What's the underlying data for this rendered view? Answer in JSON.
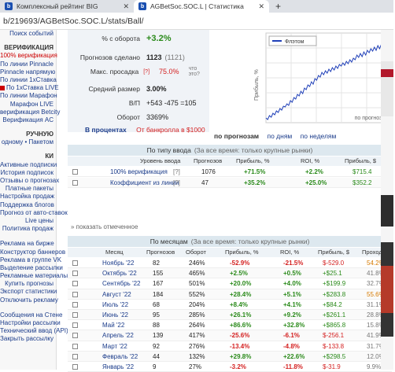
{
  "browser": {
    "tabs": [
      {
        "label": "Комплексный рейтинг BIG",
        "icon": "b"
      },
      {
        "label": "AGBetSoc.SOC.L | Статистика",
        "icon": "b"
      }
    ],
    "address": "b/219693/AGBetSoc.SOC.L/stats/Ball/"
  },
  "sidebar": {
    "items": [
      {
        "label": "Поиск событий",
        "style": "normal"
      },
      {
        "label": "ВЕРИФИКАЦИЯ",
        "style": "head"
      },
      {
        "label": "100% верификация",
        "style": "red"
      },
      {
        "label": "По линии Pinnacle",
        "style": "normal"
      },
      {
        "label": "Pinnacle напрямую",
        "style": "normal"
      },
      {
        "label": "По линии 1хСтавка",
        "style": "normal"
      },
      {
        "label": "По 1хСтавка LIVE",
        "style": "icon"
      },
      {
        "label": "По линии Марафон",
        "style": "normal"
      },
      {
        "label": "Марафон LIVE",
        "style": "normal"
      },
      {
        "label": "верификация Betcity",
        "style": "normal"
      },
      {
        "label": "Верификация AC",
        "style": "normal"
      },
      {
        "label": "РУЧНУЮ",
        "style": "head"
      },
      {
        "label": "одному • Пакетом",
        "style": "normal"
      },
      {
        "label": "КИ",
        "style": "head"
      },
      {
        "label": "Активные подписки",
        "style": "normal"
      },
      {
        "label": "История подписок",
        "style": "normal"
      },
      {
        "label": "Отзывы о прогнозах",
        "style": "normal"
      },
      {
        "label": "Платные пакеты",
        "style": "normal"
      },
      {
        "label": "Настройка продаж",
        "style": "normal"
      },
      {
        "label": "Поддержка блогов",
        "style": "normal"
      },
      {
        "label": "Прогноз от авто-ставок",
        "style": "normal"
      },
      {
        "label": "Live цены",
        "style": "normal"
      },
      {
        "label": "Политика продаж",
        "style": "normal"
      },
      {
        "label": "Реклама на бирже",
        "style": "gap"
      },
      {
        "label": "Конструктор баннеров",
        "style": "normal"
      },
      {
        "label": "Реклама в группе VK",
        "style": "normal"
      },
      {
        "label": "Выделение рассылки",
        "style": "normal"
      },
      {
        "label": "Рекламные материалы",
        "style": "normal"
      },
      {
        "label": "Купить прогнозы",
        "style": "normal"
      },
      {
        "label": "Экспорт статистики",
        "style": "normal"
      },
      {
        "label": "Отключить рекламу",
        "style": "normal"
      },
      {
        "label": "Сообщения на Стене",
        "style": "gap"
      },
      {
        "label": "Настройки рассылки",
        "style": "normal"
      },
      {
        "label": "Технический ввод (API)",
        "style": "normal"
      },
      {
        "label": "Закрыть рассылку",
        "style": "normal"
      }
    ]
  },
  "summary": {
    "rows": [
      {
        "label": "% с оборота",
        "value": "+3.2%",
        "extra": "",
        "color": "green"
      },
      {
        "label": "Прогнозов сделано",
        "value": "1123",
        "extra": "(1121)",
        "color": "dark"
      },
      {
        "label": "Макс. просадка",
        "hint": "[?]",
        "value": "75.0%",
        "extra": "что это?",
        "color": "red"
      },
      {
        "label": "Средний размер",
        "value": "3.00%",
        "extra": "",
        "color": "dark"
      },
      {
        "label": "В/П",
        "value": "+543 -475 =105",
        "extra": "",
        "color": "dark"
      },
      {
        "label": "Оборот",
        "value": "3369%",
        "extra": "",
        "color": "dark"
      }
    ],
    "percent_label": "В процентах",
    "percent_note": "От банкролла в $1000"
  },
  "chart": {
    "legend": "Флэтом",
    "ylabel": "Прибыль, %",
    "xcaption": "по прогнозам",
    "links": [
      "по прогнозам",
      "по дням",
      "по неделям"
    ],
    "chart_data": {
      "type": "line",
      "series": [
        {
          "name": "Флэтом",
          "values": [
            0,
            -2,
            3,
            1,
            6,
            4,
            9,
            7,
            12,
            10,
            15,
            14,
            18,
            16,
            22,
            20,
            26,
            24,
            30,
            28,
            34,
            31,
            38,
            36,
            42,
            40,
            46,
            43,
            50,
            48,
            54,
            52,
            58,
            55,
            60,
            57,
            62,
            59,
            64,
            61,
            66,
            63,
            68,
            66,
            70,
            67,
            72,
            69,
            74,
            71,
            76,
            74,
            80,
            77,
            82,
            78,
            84,
            80,
            86,
            83,
            88,
            85,
            90,
            86,
            92,
            88,
            94,
            90,
            96,
            92,
            98,
            95,
            100
          ]
        }
      ],
      "grid": true,
      "legend_position": "top-left"
    }
  },
  "by_type": {
    "title": "По типу ввода",
    "note": "(За все время: только крупные рынки)",
    "headers": [
      "Уровень ввода",
      "Прогнозов",
      "Прибыль, %",
      "ROI, %",
      "Прибыль, $"
    ],
    "rows": [
      {
        "name": "100% верификация",
        "hint": "[?]",
        "count": "1076",
        "profit": "+71.5%",
        "roi": "+2.2%",
        "usd": "$715.4"
      },
      {
        "name": "Коэффициент из линии",
        "hint": "[?]",
        "count": "47",
        "profit": "+35.2%",
        "roi": "+25.0%",
        "usd": "$352.2"
      }
    ],
    "show_more": "» показать отмеченное"
  },
  "by_month": {
    "title": "По месяцам",
    "note": "(За все время: только крупные рынки)",
    "headers": [
      "Месяц",
      "Прогнозов",
      "Оборот",
      "Прибыль, %",
      "ROI, %",
      "Прибыль, $",
      "Проходи"
    ],
    "rows": [
      {
        "month": "Ноябрь '22",
        "count": "82",
        "turnover": "246%",
        "profit": "-52.9%",
        "roi": "-21.5%",
        "usd": "$-529.0",
        "pass": "54.2%",
        "pcolor": "orange"
      },
      {
        "month": "Октябрь '22",
        "count": "155",
        "turnover": "465%",
        "profit": "+2.5%",
        "roi": "+0.5%",
        "usd": "+$25.1",
        "pass": "41.8%",
        "pcolor": "gray"
      },
      {
        "month": "Сентябрь '22",
        "count": "167",
        "turnover": "501%",
        "profit": "+20.0%",
        "roi": "+4.0%",
        "usd": "+$199.9",
        "pass": "32.7%",
        "pcolor": "gray"
      },
      {
        "month": "Август '22",
        "count": "184",
        "turnover": "552%",
        "profit": "+28.4%",
        "roi": "+5.1%",
        "usd": "+$283.8",
        "pass": "55.6%",
        "pcolor": "orange"
      },
      {
        "month": "Июль '22",
        "count": "68",
        "turnover": "204%",
        "profit": "+8.4%",
        "roi": "+4.1%",
        "usd": "+$84.2",
        "pass": "31.1%",
        "pcolor": "gray"
      },
      {
        "month": "Июнь '22",
        "count": "95",
        "turnover": "285%",
        "profit": "+26.1%",
        "roi": "+9.2%",
        "usd": "+$261.1",
        "pass": "28.8%",
        "pcolor": "gray"
      },
      {
        "month": "Май '22",
        "count": "88",
        "turnover": "264%",
        "profit": "+86.6%",
        "roi": "+32.8%",
        "usd": "+$865.8",
        "pass": "15.8%",
        "pcolor": "gray"
      },
      {
        "month": "Апрель '22",
        "count": "139",
        "turnover": "417%",
        "profit": "-25.6%",
        "roi": "-6.1%",
        "usd": "$-256.1",
        "pass": "41.9%",
        "pcolor": "gray"
      },
      {
        "month": "Март '22",
        "count": "92",
        "turnover": "276%",
        "profit": "-13.4%",
        "roi": "-4.8%",
        "usd": "$-133.8",
        "pass": "31.7%",
        "pcolor": "gray"
      },
      {
        "month": "Февраль '22",
        "count": "44",
        "turnover": "132%",
        "profit": "+29.8%",
        "roi": "+22.6%",
        "usd": "+$298.5",
        "pass": "12.0%",
        "pcolor": "gray"
      },
      {
        "month": "Январь '22",
        "count": "9",
        "turnover": "27%",
        "profit": "-3.2%",
        "roi": "-11.8%",
        "usd": "$-31.9",
        "pass": "9.9%",
        "pcolor": "gray"
      }
    ]
  }
}
